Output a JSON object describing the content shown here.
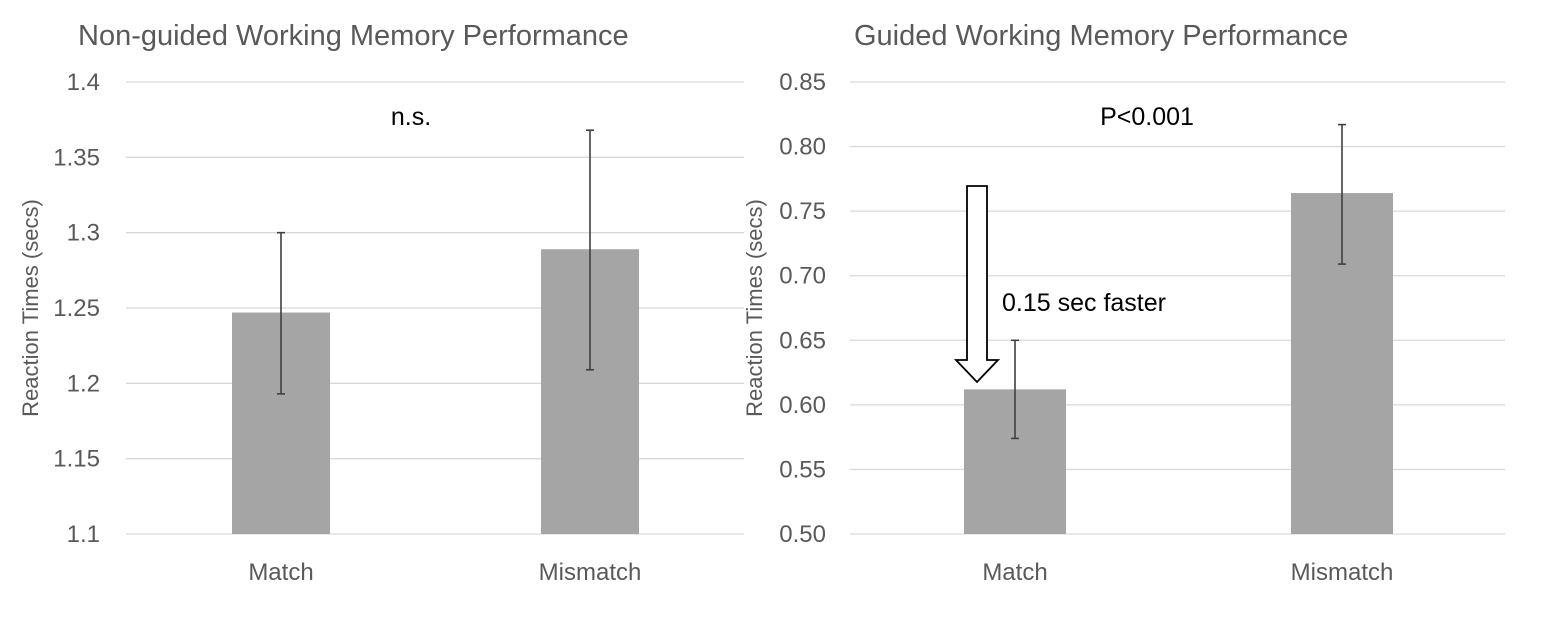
{
  "chart_data": [
    {
      "type": "bar",
      "title": "Non-guided Working Memory  Performance",
      "ylabel": "Reaction Times (secs)",
      "xlabel": "",
      "categories": [
        "Match",
        "Mismatch"
      ],
      "values": [
        1.247,
        1.289
      ],
      "error_low": [
        1.193,
        1.209
      ],
      "error_high": [
        1.3,
        1.368
      ],
      "ylim": [
        1.1,
        1.4
      ],
      "yticks": [
        "1.1",
        "1.15",
        "1.2",
        "1.25",
        "1.3",
        "1.35",
        "1.4"
      ],
      "ytick_values": [
        1.1,
        1.15,
        1.2,
        1.25,
        1.3,
        1.35,
        1.4
      ],
      "annotation": "n.s.",
      "grid": true,
      "bar_color": "#a5a5a5"
    },
    {
      "type": "bar",
      "title": "Guided Working Memory Performance",
      "ylabel": "Reaction Times (secs)",
      "xlabel": "",
      "categories": [
        "Match",
        "Mismatch"
      ],
      "values": [
        0.612,
        0.764
      ],
      "error_low": [
        0.574,
        0.709
      ],
      "error_high": [
        0.65,
        0.817
      ],
      "ylim": [
        0.5,
        0.85
      ],
      "yticks": [
        "0.50",
        "0.55",
        "0.60",
        "0.65",
        "0.70",
        "0.75",
        "0.80",
        "0.85"
      ],
      "ytick_values": [
        0.5,
        0.55,
        0.6,
        0.65,
        0.7,
        0.75,
        0.8,
        0.85
      ],
      "annotation": "P<0.001",
      "arrow_label": "0.15 sec faster",
      "arrow_icon": "down-arrow-icon",
      "grid": true,
      "bar_color": "#a5a5a5"
    }
  ]
}
